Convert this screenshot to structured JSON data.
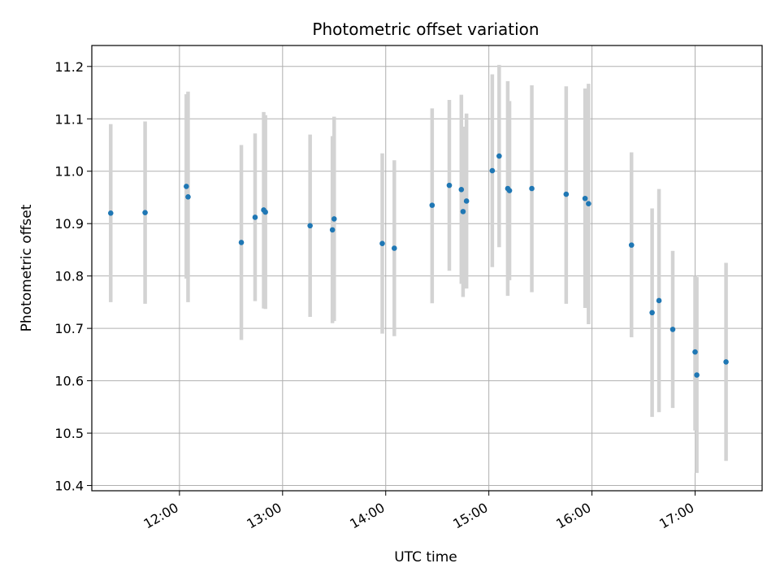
{
  "chart_data": {
    "type": "scatter",
    "title": "Photometric offset variation",
    "xlabel": "UTC time",
    "ylabel": "Photometric offset",
    "xlim": [
      "11:09",
      "17:39"
    ],
    "ylim": [
      10.39,
      11.24
    ],
    "x_ticks": [
      "12:00",
      "13:00",
      "14:00",
      "15:00",
      "16:00",
      "17:00"
    ],
    "y_ticks": [
      10.4,
      10.5,
      10.6,
      10.7,
      10.8,
      10.9,
      11.0,
      11.1,
      11.2
    ],
    "grid": true,
    "marker_color": "#1f77b4",
    "errorbar_color": "#d3d3d3",
    "points": [
      {
        "x": "11:20",
        "y": 10.92,
        "ylo": 10.75,
        "yhi": 11.09
      },
      {
        "x": "11:40",
        "y": 10.921,
        "ylo": 10.747,
        "yhi": 11.095
      },
      {
        "x": "12:04",
        "y": 10.971,
        "ylo": 10.795,
        "yhi": 11.147
      },
      {
        "x": "12:05",
        "y": 10.951,
        "ylo": 10.75,
        "yhi": 11.152
      },
      {
        "x": "12:36",
        "y": 10.864,
        "ylo": 10.678,
        "yhi": 11.05
      },
      {
        "x": "12:44",
        "y": 10.912,
        "ylo": 10.752,
        "yhi": 11.072
      },
      {
        "x": "12:49",
        "y": 10.926,
        "ylo": 10.738,
        "yhi": 11.113
      },
      {
        "x": "12:50",
        "y": 10.922,
        "ylo": 10.737,
        "yhi": 11.107
      },
      {
        "x": "13:16",
        "y": 10.896,
        "ylo": 10.722,
        "yhi": 11.07
      },
      {
        "x": "13:29",
        "y": 10.888,
        "ylo": 10.71,
        "yhi": 11.067
      },
      {
        "x": "13:30",
        "y": 10.909,
        "ylo": 10.714,
        "yhi": 11.104
      },
      {
        "x": "13:58",
        "y": 10.862,
        "ylo": 10.69,
        "yhi": 11.034
      },
      {
        "x": "14:05",
        "y": 10.853,
        "ylo": 10.685,
        "yhi": 11.021
      },
      {
        "x": "14:27",
        "y": 10.935,
        "ylo": 10.748,
        "yhi": 11.12
      },
      {
        "x": "14:37",
        "y": 10.973,
        "ylo": 10.81,
        "yhi": 11.136
      },
      {
        "x": "14:44",
        "y": 10.965,
        "ylo": 10.785,
        "yhi": 11.146
      },
      {
        "x": "14:45",
        "y": 10.923,
        "ylo": 10.76,
        "yhi": 11.085
      },
      {
        "x": "14:47",
        "y": 10.943,
        "ylo": 10.776,
        "yhi": 11.11
      },
      {
        "x": "15:02",
        "y": 11.001,
        "ylo": 10.817,
        "yhi": 11.185
      },
      {
        "x": "15:06",
        "y": 11.029,
        "ylo": 10.855,
        "yhi": 11.203
      },
      {
        "x": "15:11",
        "y": 10.967,
        "ylo": 10.762,
        "yhi": 11.172
      },
      {
        "x": "15:12",
        "y": 10.963,
        "ylo": 10.792,
        "yhi": 11.134
      },
      {
        "x": "15:25",
        "y": 10.967,
        "ylo": 10.769,
        "yhi": 11.164
      },
      {
        "x": "15:45",
        "y": 10.956,
        "ylo": 10.747,
        "yhi": 11.162
      },
      {
        "x": "15:56",
        "y": 10.948,
        "ylo": 10.739,
        "yhi": 11.158
      },
      {
        "x": "15:58",
        "y": 10.938,
        "ylo": 10.708,
        "yhi": 11.167
      },
      {
        "x": "16:23",
        "y": 10.859,
        "ylo": 10.683,
        "yhi": 11.036
      },
      {
        "x": "16:35",
        "y": 10.73,
        "ylo": 10.531,
        "yhi": 10.929
      },
      {
        "x": "16:39",
        "y": 10.753,
        "ylo": 10.54,
        "yhi": 10.966
      },
      {
        "x": "16:47",
        "y": 10.698,
        "ylo": 10.548,
        "yhi": 10.848
      },
      {
        "x": "17:00",
        "y": 10.655,
        "ylo": 10.505,
        "yhi": 10.8
      },
      {
        "x": "17:01",
        "y": 10.611,
        "ylo": 10.424,
        "yhi": 10.798
      },
      {
        "x": "17:18",
        "y": 10.636,
        "ylo": 10.447,
        "yhi": 10.825
      }
    ]
  }
}
